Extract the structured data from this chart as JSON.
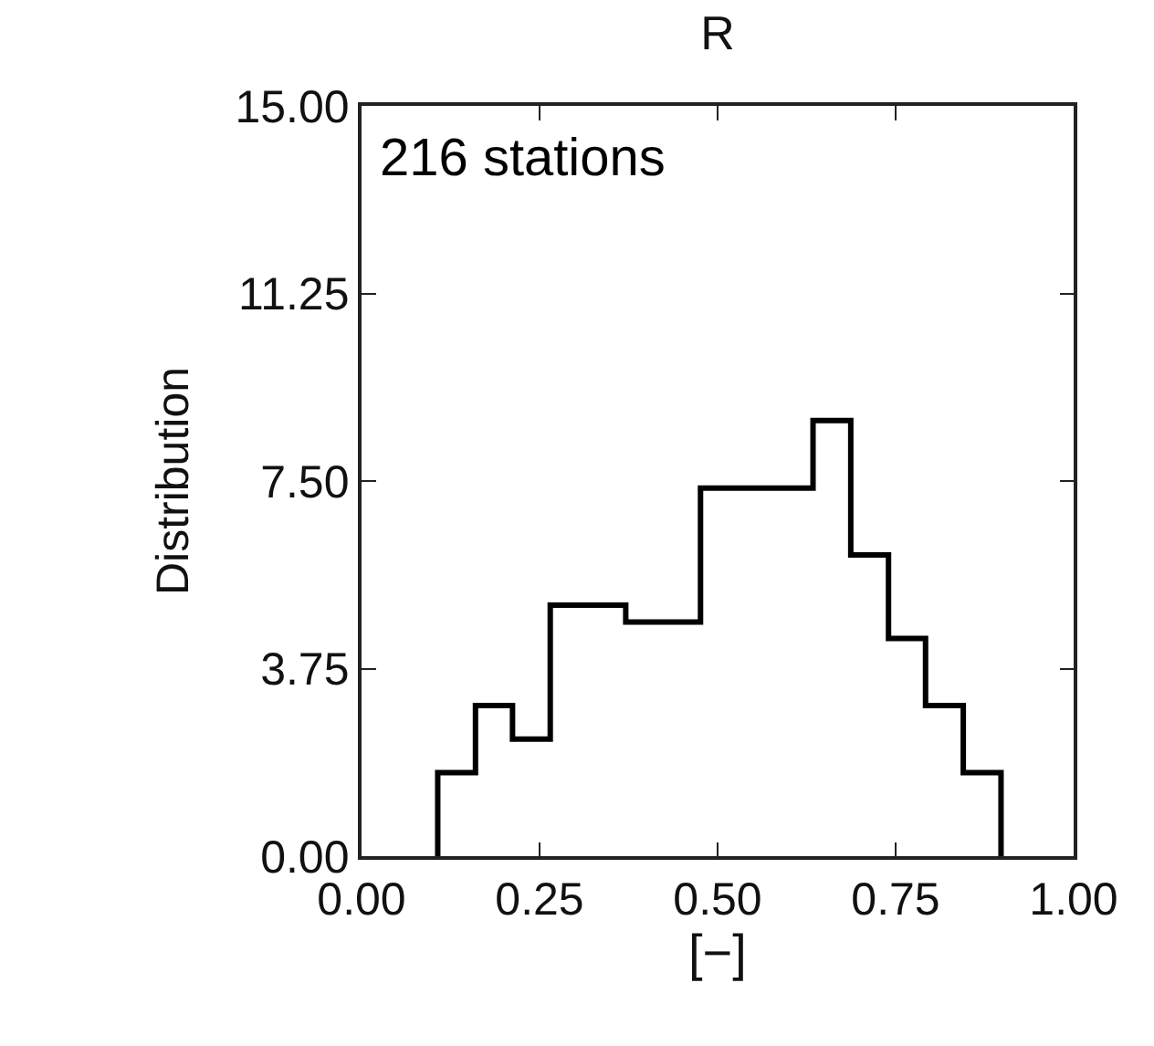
{
  "chart_data": {
    "type": "histogram",
    "title": "R",
    "xlabel": "[−]",
    "ylabel": "Distribution",
    "bins": [
      0.107,
      0.16,
      0.212,
      0.265,
      0.318,
      0.371,
      0.423,
      0.476,
      0.529,
      0.581,
      0.634,
      0.687,
      0.74,
      0.792,
      0.845,
      0.898
    ],
    "values": [
      1.67,
      3.01,
      2.34,
      5.02,
      5.02,
      4.68,
      4.68,
      7.36,
      7.36,
      7.36,
      8.71,
      6.02,
      4.35,
      3.01,
      1.67
    ],
    "color": "#000000",
    "xlim": [
      0,
      1
    ],
    "xticks": [
      {
        "value": 0,
        "label": "0.00"
      },
      {
        "value": 0.25,
        "label": "0.25"
      },
      {
        "value": 0.5,
        "label": "0.50"
      },
      {
        "value": 0.75,
        "label": "0.75"
      },
      {
        "value": 1,
        "label": "1.00"
      }
    ],
    "ylim": [
      0,
      15
    ],
    "yticks": [
      {
        "value": 0,
        "label": "0.00"
      },
      {
        "value": 3.75,
        "label": "3.75"
      },
      {
        "value": 7.5,
        "label": "7.50"
      },
      {
        "value": 11.25,
        "label": "11.25"
      },
      {
        "value": 15,
        "label": "15.00"
      }
    ],
    "annotations": [
      "216 stations"
    ]
  }
}
